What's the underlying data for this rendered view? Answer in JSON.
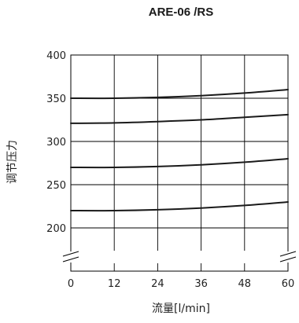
{
  "chart_data": {
    "type": "line",
    "title": "ARE-06 /RS",
    "xlabel": "流量[l/min]",
    "ylabel": "调节压力",
    "x_ticks": [
      0,
      12,
      24,
      36,
      48,
      60
    ],
    "y_ticks": [
      200,
      250,
      300,
      350,
      400
    ],
    "xlim": [
      0,
      60
    ],
    "ylim": [
      200,
      400
    ],
    "grid": true,
    "axis_break": true,
    "line_color": "#1a1a1a",
    "x": [
      0,
      12,
      24,
      36,
      48,
      60
    ],
    "series": [
      {
        "values": [
          350,
          350,
          351,
          353,
          356,
          360
        ]
      },
      {
        "values": [
          321,
          321.5,
          323,
          325,
          328,
          331
        ]
      },
      {
        "values": [
          270,
          270,
          271,
          273,
          276,
          280
        ]
      },
      {
        "values": [
          220,
          220,
          221,
          223,
          226,
          230
        ]
      }
    ]
  }
}
